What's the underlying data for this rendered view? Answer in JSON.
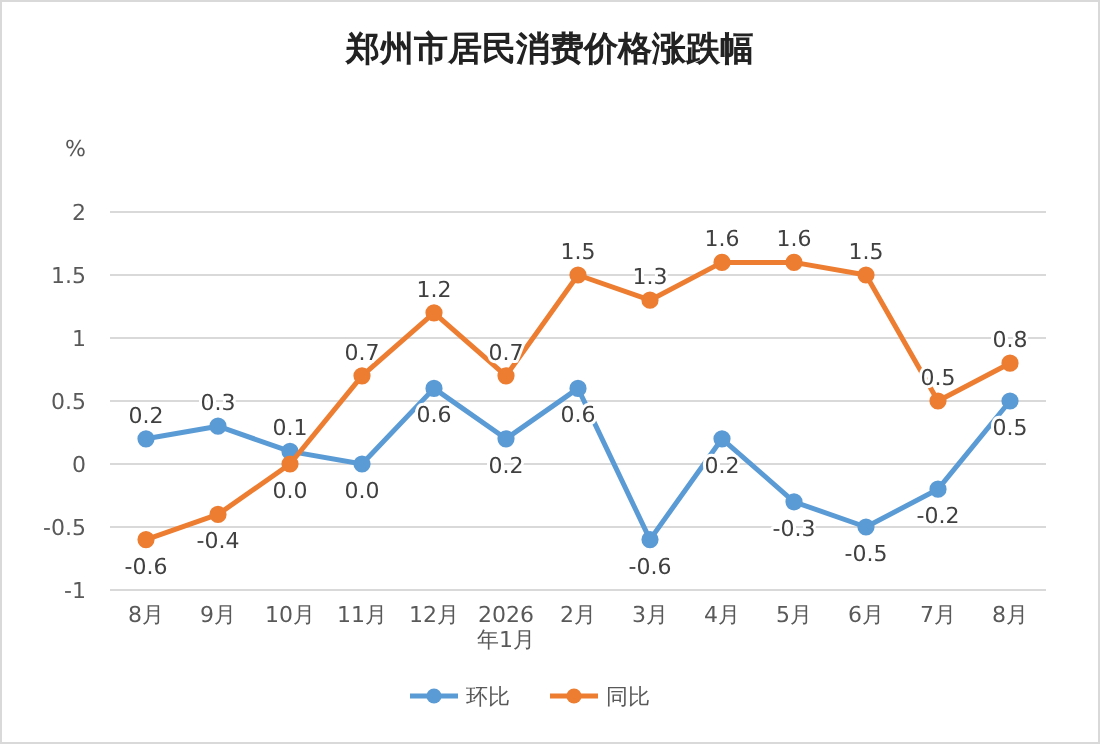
{
  "chart_data": {
    "type": "line",
    "title": "郑州市居民消费价格涨跌幅",
    "ylabel": "%",
    "categories": [
      "8月",
      "9月",
      "10月",
      "11月",
      "12月",
      "2026\n年1月",
      "2月",
      "3月",
      "4月",
      "5月",
      "6月",
      "7月",
      "8月"
    ],
    "series": [
      {
        "name": "环比",
        "color": "#5b9bd5",
        "values": [
          0.2,
          0.3,
          0.1,
          0.0,
          0.6,
          0.2,
          0.6,
          -0.6,
          0.2,
          -0.3,
          -0.5,
          -0.2,
          0.5
        ],
        "value_labels": [
          "0.2",
          "0.3",
          "0.1",
          "0.0",
          "0.6",
          "0.2",
          "0.6",
          "-0.6",
          "0.2",
          "-0.3",
          "-0.5",
          "-0.2",
          "0.5"
        ]
      },
      {
        "name": "同比",
        "color": "#ed7d31",
        "values": [
          -0.6,
          -0.4,
          0.0,
          0.7,
          1.2,
          0.7,
          1.5,
          1.3,
          1.6,
          1.6,
          1.5,
          0.5,
          0.8
        ],
        "value_labels": [
          "-0.6",
          "-0.4",
          "0.0",
          "0.7",
          "1.2",
          "0.7",
          "1.5",
          "1.3",
          "1.6",
          "1.6",
          "1.5",
          "0.5",
          "0.8"
        ]
      }
    ],
    "ylim": [
      -1,
      2
    ],
    "yticks": [
      -1,
      -0.5,
      0,
      0.5,
      1,
      1.5,
      2
    ],
    "grid": "y",
    "legend": "bottom",
    "marker": "circle",
    "line_style": "solid"
  }
}
